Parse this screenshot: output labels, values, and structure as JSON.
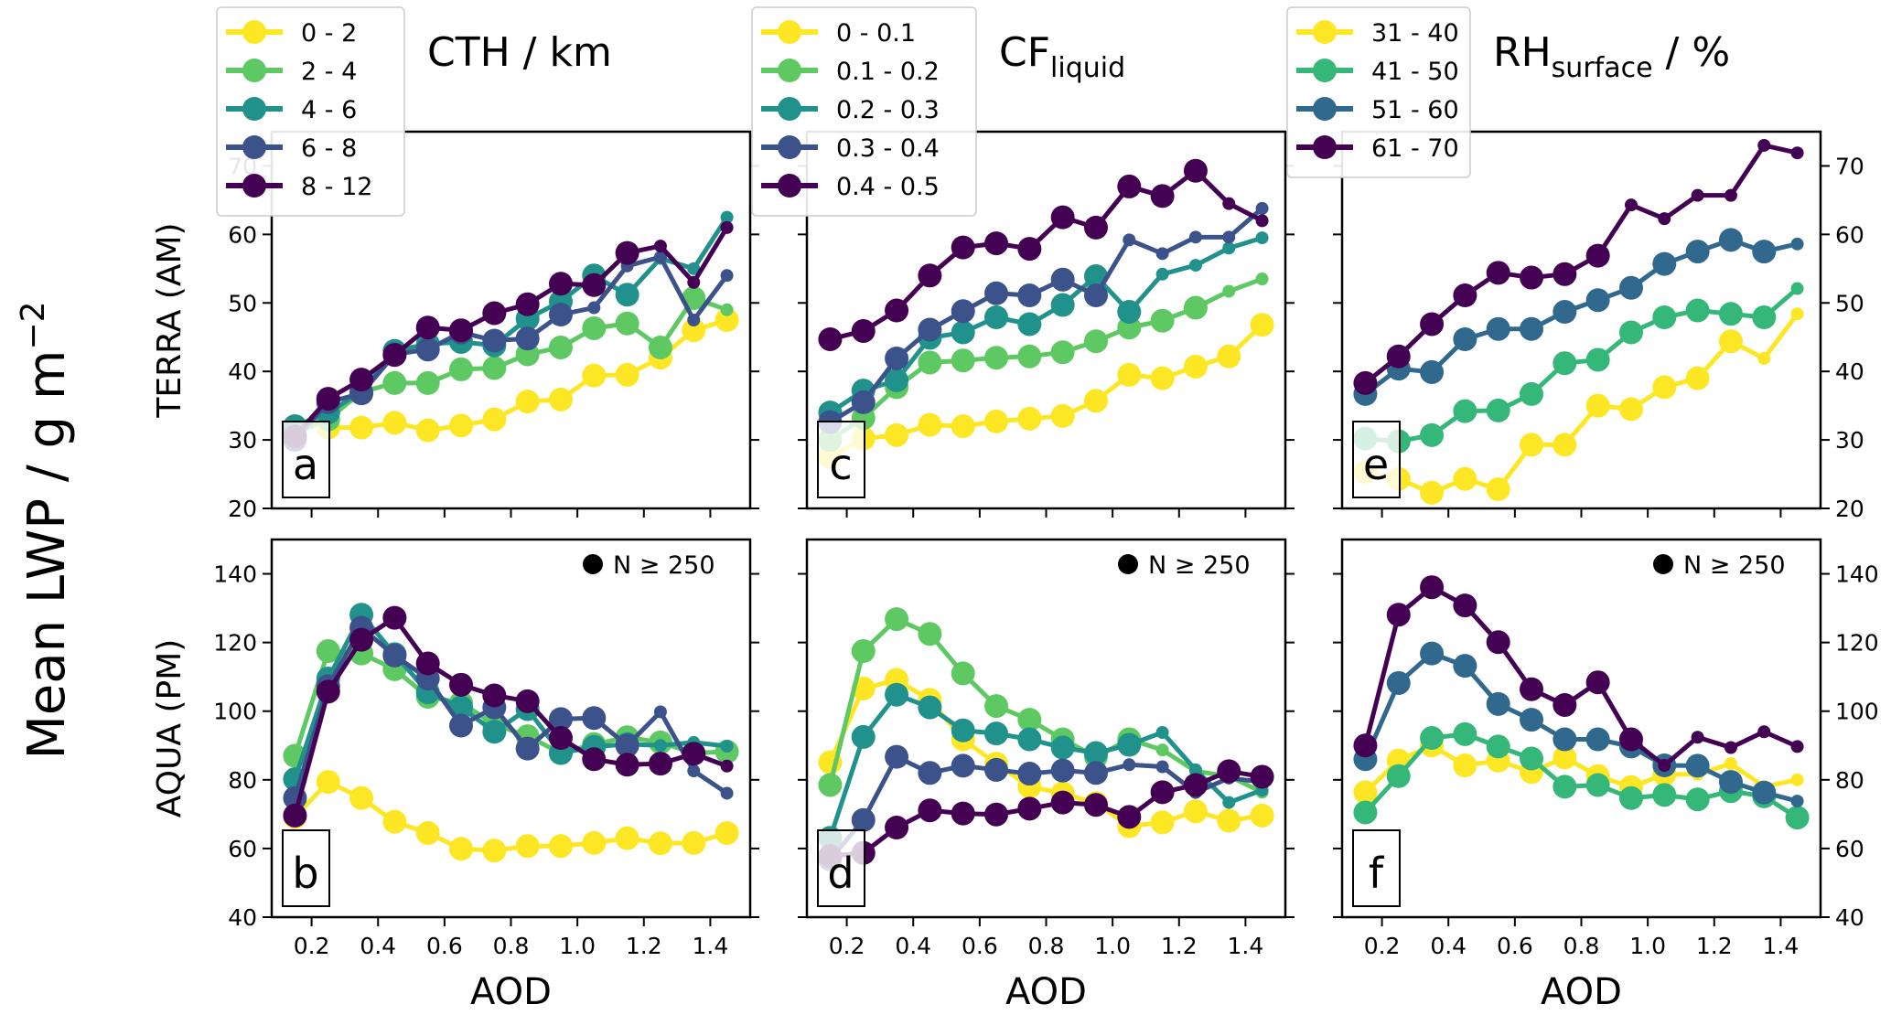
{
  "figure": {
    "ylabel": "Mean LWP / g m",
    "ylabel_sup": "−2",
    "xlabel": "AOD",
    "row_labels": [
      "TERRA (AM)",
      "AQUA (PM)"
    ],
    "marker_note": "N ≥ 250"
  },
  "chart_data": [
    {
      "type": "line",
      "panel": "a",
      "row": "TERRA (AM)",
      "column_title": "CTH / km",
      "column_title_sub": "",
      "xlabel": "",
      "ylabel": "TERRA (AM)",
      "xlim": [
        0.08,
        1.52
      ],
      "ylim": [
        20,
        75
      ],
      "yticks": [
        20,
        30,
        40,
        50,
        60,
        70
      ],
      "xticks": [
        0.2,
        0.4,
        0.6,
        0.8,
        1.0,
        1.2,
        1.4
      ],
      "xtick_labels_shown": false,
      "y_axis_side": "left",
      "legend": "top-left (above)",
      "x": [
        0.15,
        0.25,
        0.35,
        0.45,
        0.55,
        0.65,
        0.75,
        0.85,
        0.95,
        1.05,
        1.15,
        1.25,
        1.35,
        1.45
      ],
      "series": [
        {
          "name": "0 - 2",
          "color": "#fde725",
          "n_large": 14,
          "values": [
            32,
            31.8,
            31.8,
            32.5,
            31.4,
            32.1,
            33,
            35.6,
            35.9,
            39.4,
            39.5,
            42,
            46,
            47.5
          ]
        },
        {
          "name": "2 - 4",
          "color": "#5ec962",
          "n_large": 13,
          "values": [
            31,
            33,
            37,
            38.3,
            38.3,
            40.3,
            40.5,
            42.5,
            43.5,
            46.3,
            47,
            43.5,
            50.7,
            49
          ]
        },
        {
          "name": "4 - 6",
          "color": "#21918c",
          "n_large": 11,
          "values": [
            32,
            34,
            37,
            43,
            44,
            44.3,
            43.8,
            47.7,
            50.2,
            54,
            51.2,
            56.5,
            55,
            62.5
          ]
        },
        {
          "name": "6 - 8",
          "color": "#3b528b",
          "n_large": 9,
          "values": [
            30,
            35.5,
            36.8,
            42.5,
            43.2,
            45.7,
            44.5,
            44.8,
            48.3,
            49.3,
            55.4,
            56.7,
            47.5,
            54
          ]
        },
        {
          "name": "8 - 12",
          "color": "#440154",
          "n_large": 11,
          "values": [
            30.5,
            36,
            38.8,
            42.4,
            46.4,
            46,
            48.5,
            49.8,
            52.8,
            52.6,
            57.3,
            58.3,
            53,
            61
          ]
        }
      ]
    },
    {
      "type": "line",
      "panel": "c",
      "row": "TERRA (AM)",
      "column_title": "CF",
      "column_title_sub": "liquid",
      "xlabel": "",
      "ylabel": "",
      "xlim": [
        0.08,
        1.52
      ],
      "ylim": [
        20,
        75
      ],
      "yticks": [
        20,
        30,
        40,
        50,
        60,
        70
      ],
      "xticks": [
        0.2,
        0.4,
        0.6,
        0.8,
        1.0,
        1.2,
        1.4
      ],
      "xtick_labels_shown": false,
      "y_axis_side": "none",
      "legend": "top-left (above)",
      "x": [
        0.15,
        0.25,
        0.35,
        0.45,
        0.55,
        0.65,
        0.75,
        0.85,
        0.95,
        1.05,
        1.15,
        1.25,
        1.35,
        1.45
      ],
      "series": [
        {
          "name": "0 - 0.1",
          "color": "#fde725",
          "n_large": 14,
          "values": [
            27.5,
            30.2,
            30.7,
            32.2,
            32,
            32.7,
            33.1,
            33.5,
            35.7,
            39.5,
            39,
            40.7,
            42.2,
            46.8
          ]
        },
        {
          "name": "0.1 - 0.2",
          "color": "#5ec962",
          "n_large": 12,
          "values": [
            30,
            33.2,
            37.7,
            41.3,
            41.6,
            42,
            42.2,
            42.8,
            44.4,
            46.4,
            47.4,
            49.3,
            51.7,
            53.5
          ]
        },
        {
          "name": "0.2 - 0.3",
          "color": "#21918c",
          "n_large": 10,
          "values": [
            34,
            37.2,
            38.7,
            44.9,
            45.7,
            47.9,
            46.9,
            49.7,
            53.9,
            48.7,
            54.2,
            55.5,
            58,
            59.5
          ]
        },
        {
          "name": "0.3 - 0.4",
          "color": "#3b528b",
          "n_large": 9,
          "values": [
            32.6,
            35.5,
            41.9,
            46.1,
            48.8,
            51.4,
            51.1,
            53.4,
            51.1,
            59.2,
            57.2,
            59.6,
            59.6,
            63.8
          ]
        },
        {
          "name": "0.4 - 0.5",
          "color": "#440154",
          "n_large": 12,
          "values": [
            44.7,
            45.9,
            48.9,
            54,
            58.1,
            58.7,
            57.9,
            62.5,
            61,
            67,
            65.6,
            69.3,
            64.5,
            62
          ]
        }
      ]
    },
    {
      "type": "line",
      "panel": "e",
      "row": "TERRA (AM)",
      "column_title": "RH",
      "column_title_sub": "surface",
      "column_title_suffix": " / %",
      "xlabel": "",
      "ylabel": "",
      "xlim": [
        0.08,
        1.52
      ],
      "ylim": [
        20,
        75
      ],
      "yticks": [
        20,
        30,
        40,
        50,
        60,
        70
      ],
      "xticks": [
        0.2,
        0.4,
        0.6,
        0.8,
        1.0,
        1.2,
        1.4
      ],
      "xtick_labels_shown": false,
      "y_axis_side": "right",
      "legend": "top-left (above)",
      "x": [
        0.15,
        0.25,
        0.35,
        0.45,
        0.55,
        0.65,
        0.75,
        0.85,
        0.95,
        1.05,
        1.15,
        1.25,
        1.35,
        1.45
      ],
      "series": [
        {
          "name": "31 - 40",
          "color": "#fde725",
          "n_large": 12,
          "values": [
            25.3,
            24.3,
            22.3,
            24.3,
            22.8,
            29.3,
            29.3,
            35,
            34.5,
            37.7,
            39,
            44.4,
            41.9,
            48.4
          ]
        },
        {
          "name": "41 - 50",
          "color": "#35b779",
          "n_large": 13,
          "values": [
            30.2,
            29.8,
            30.7,
            34.2,
            34.3,
            36.7,
            41.2,
            41.7,
            45.7,
            47.9,
            48.9,
            48.4,
            47.9,
            52.1
          ]
        },
        {
          "name": "51 - 60",
          "color": "#31688e",
          "n_large": 13,
          "values": [
            36.7,
            40.4,
            39.9,
            44.7,
            46.2,
            46.2,
            48.7,
            50.4,
            52.2,
            55.7,
            57.5,
            59.2,
            57.5,
            58.6
          ]
        },
        {
          "name": "61 - 70",
          "color": "#440154",
          "n_large": 8,
          "values": [
            38.3,
            42.2,
            46.9,
            51.1,
            54.4,
            53.7,
            54.2,
            56.9,
            64.3,
            62.3,
            65.7,
            65.7,
            73,
            71.9
          ]
        }
      ]
    },
    {
      "type": "line",
      "panel": "b",
      "row": "AQUA (PM)",
      "xlabel": "AOD",
      "ylabel": "AQUA (PM)",
      "xlim": [
        0.08,
        1.52
      ],
      "ylim": [
        40,
        150
      ],
      "yticks": [
        40,
        60,
        80,
        100,
        120,
        140
      ],
      "xticks": [
        0.2,
        0.4,
        0.6,
        0.8,
        1.0,
        1.2,
        1.4
      ],
      "xtick_labels_shown": true,
      "y_axis_side": "left",
      "legend": "top-right marker note",
      "x": [
        0.15,
        0.25,
        0.35,
        0.45,
        0.55,
        0.65,
        0.75,
        0.85,
        0.95,
        1.05,
        1.15,
        1.25,
        1.35,
        1.45
      ],
      "series": [
        {
          "name": "0 - 2",
          "color": "#fde725",
          "n_large": 14,
          "values": [
            69.2,
            79.4,
            74.7,
            67.8,
            64.5,
            59.9,
            59.4,
            60.7,
            60.7,
            61.6,
            63,
            61.5,
            61.6,
            64.5
          ]
        },
        {
          "name": "2 - 4",
          "color": "#5ec962",
          "n_large": 14,
          "values": [
            87,
            117.5,
            116.8,
            112.2,
            104.2,
            102.4,
            96.2,
            92.7,
            87.8,
            90.4,
            92.4,
            90.9,
            87.8,
            88.2
          ]
        },
        {
          "name": "4 - 6",
          "color": "#21918c",
          "n_large": 11,
          "values": [
            80.2,
            109.5,
            128.1,
            116.6,
            105.5,
            101.1,
            94,
            100.6,
            87.8,
            89.6,
            90.4,
            90,
            90.9,
            89.8
          ]
        },
        {
          "name": "6 - 8",
          "color": "#3b528b",
          "n_large": 11,
          "values": [
            74.7,
            107.3,
            124.3,
            116.2,
            109.5,
            95.8,
            101.1,
            89.1,
            97.7,
            98,
            90,
            99.8,
            82.6,
            76.1
          ]
        },
        {
          "name": "8 - 12",
          "color": "#440154",
          "n_large": 13,
          "values": [
            69.6,
            105.7,
            120.8,
            127.2,
            113.9,
            107.7,
            104.6,
            102.9,
            92.2,
            86,
            84.4,
            84.7,
            87.6,
            84
          ]
        }
      ]
    },
    {
      "type": "line",
      "panel": "d",
      "row": "AQUA (PM)",
      "xlabel": "AOD",
      "ylabel": "",
      "xlim": [
        0.08,
        1.52
      ],
      "ylim": [
        40,
        150
      ],
      "yticks": [
        40,
        60,
        80,
        100,
        120,
        140
      ],
      "xticks": [
        0.2,
        0.4,
        0.6,
        0.8,
        1.0,
        1.2,
        1.4
      ],
      "xtick_labels_shown": true,
      "y_axis_side": "none",
      "legend": "top-right marker note",
      "x": [
        0.15,
        0.25,
        0.35,
        0.45,
        0.55,
        0.65,
        0.75,
        0.85,
        0.95,
        1.05,
        1.15,
        1.25,
        1.35,
        1.45
      ],
      "series": [
        {
          "name": "0 - 0.1",
          "color": "#fde725",
          "n_large": 14,
          "values": [
            85.1,
            106.6,
            109.1,
            103.3,
            91.8,
            84.7,
            78,
            76.1,
            73.2,
            66.5,
            67.6,
            70.8,
            68.1,
            69.6
          ]
        },
        {
          "name": "0.1 - 0.2",
          "color": "#5ec962",
          "n_large": 10,
          "values": [
            78.5,
            117.5,
            126.8,
            122.5,
            111,
            101.5,
            97.5,
            91.8,
            86.7,
            91.8,
            88.7,
            82.5,
            81.1,
            76.4
          ]
        },
        {
          "name": "0.2 - 0.3",
          "color": "#21918c",
          "n_large": 10,
          "values": [
            63.1,
            92.5,
            104.8,
            101.1,
            94.4,
            93.5,
            91.8,
            89.4,
            87.8,
            90.2,
            93.8,
            82.9,
            73.4,
            77
          ]
        },
        {
          "name": "0.3 - 0.4",
          "color": "#3b528b",
          "n_large": 9,
          "values": [
            56.8,
            68.3,
            86.7,
            82,
            84.1,
            82.9,
            81.8,
            82.7,
            82,
            84.4,
            83.8,
            76.3,
            80.5,
            79.4
          ]
        },
        {
          "name": "0.4 - 0.5",
          "color": "#440154",
          "n_large": 14,
          "values": [
            57.8,
            58.7,
            66.1,
            71.1,
            70.2,
            69.9,
            71.6,
            73.4,
            72.7,
            69.2,
            76.4,
            78.5,
            82.5,
            80.9
          ]
        }
      ]
    },
    {
      "type": "line",
      "panel": "f",
      "row": "AQUA (PM)",
      "xlabel": "AOD",
      "ylabel": "",
      "xlim": [
        0.08,
        1.52
      ],
      "ylim": [
        40,
        150
      ],
      "yticks": [
        40,
        60,
        80,
        100,
        120,
        140
      ],
      "xticks": [
        0.2,
        0.4,
        0.6,
        0.8,
        1.0,
        1.2,
        1.4
      ],
      "xtick_labels_shown": true,
      "y_axis_side": "right",
      "legend": "top-right marker note",
      "x": [
        0.15,
        0.25,
        0.35,
        0.45,
        0.55,
        0.65,
        0.75,
        0.85,
        0.95,
        1.05,
        1.15,
        1.25,
        1.35,
        1.45
      ],
      "series": [
        {
          "name": "31 - 40",
          "color": "#fde725",
          "n_large": 10,
          "values": [
            76.4,
            85.6,
            90,
            84.2,
            85.6,
            82.3,
            86.5,
            81.1,
            77.9,
            81.6,
            81.6,
            84.7,
            78,
            80
          ]
        },
        {
          "name": "41 - 50",
          "color": "#35b779",
          "n_large": 14,
          "values": [
            70.5,
            81.1,
            92.2,
            93.3,
            89.7,
            86.2,
            78,
            78.5,
            74.7,
            75.6,
            74.3,
            76.7,
            75.2,
            69
          ]
        },
        {
          "name": "51 - 60",
          "color": "#31688e",
          "n_large": 13,
          "values": [
            86,
            108.2,
            116.8,
            113.2,
            102.1,
            97.5,
            91.8,
            91.8,
            89.7,
            84.2,
            84.1,
            79.4,
            76.3,
            73.8
          ]
        },
        {
          "name": "61 - 70",
          "color": "#440154",
          "n_large": 9,
          "values": [
            90,
            128.1,
            136.1,
            130.8,
            120.1,
            106.4,
            101.8,
            108.4,
            91.8,
            84.2,
            92.4,
            89.4,
            94,
            89.7
          ]
        }
      ]
    }
  ]
}
